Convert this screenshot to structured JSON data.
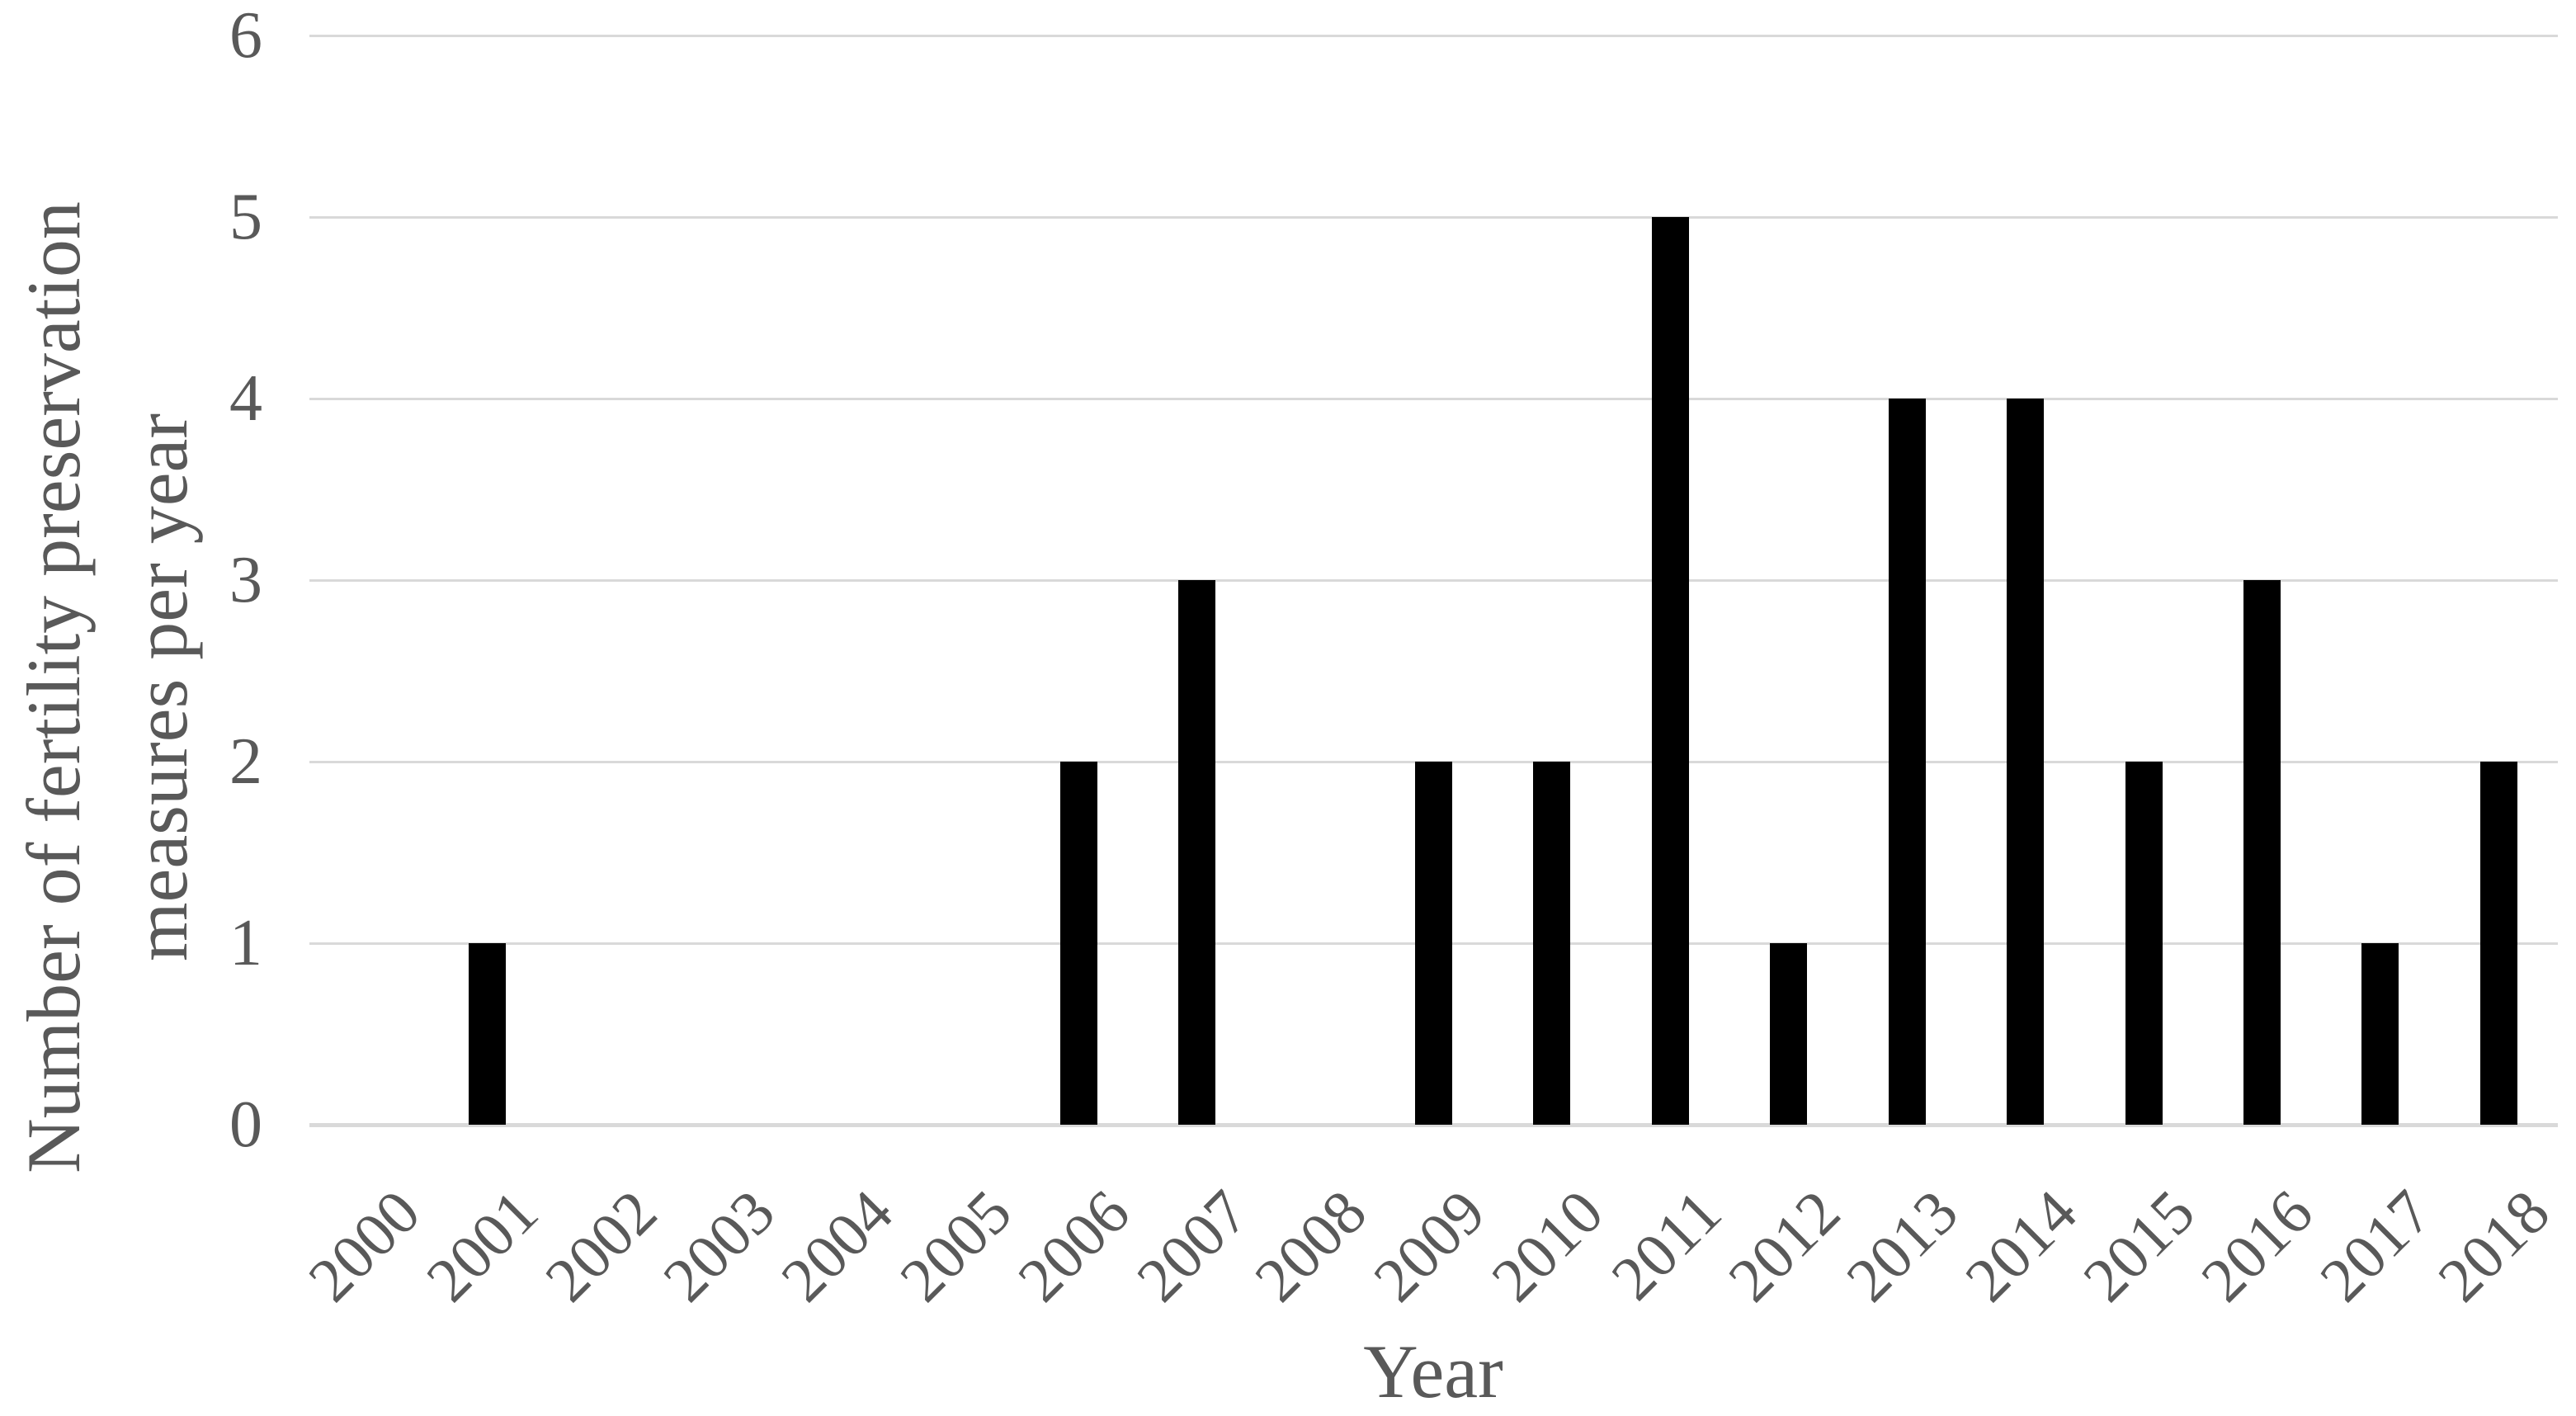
{
  "page": {
    "background": "#ffffff"
  },
  "chart_data": {
    "type": "bar",
    "title": "",
    "xlabel": "Year",
    "ylabel": "Number of fertility preservation measures per year",
    "ylabel_lines": [
      "Number of fertility preservation",
      "measures per year"
    ],
    "categories": [
      "2000",
      "2001",
      "2002",
      "2003",
      "2004",
      "2005",
      "2006",
      "2007",
      "2008",
      "2009",
      "2010",
      "2011",
      "2012",
      "2013",
      "2014",
      "2015",
      "2016",
      "2017",
      "2018"
    ],
    "values": [
      0,
      1,
      0,
      0,
      0,
      0,
      2,
      3,
      0,
      2,
      2,
      5,
      1,
      4,
      4,
      2,
      3,
      1,
      2
    ],
    "ylim": [
      0,
      6
    ],
    "yticks": [
      0,
      1,
      2,
      3,
      4,
      5,
      6
    ],
    "grid": "horizontal",
    "legend_position": "none",
    "x_tick_rotation_deg": -45,
    "colors": {
      "bar": "#000000",
      "gridline": "#d9d9d9",
      "axis_text": "#595959",
      "background": "#ffffff"
    }
  }
}
